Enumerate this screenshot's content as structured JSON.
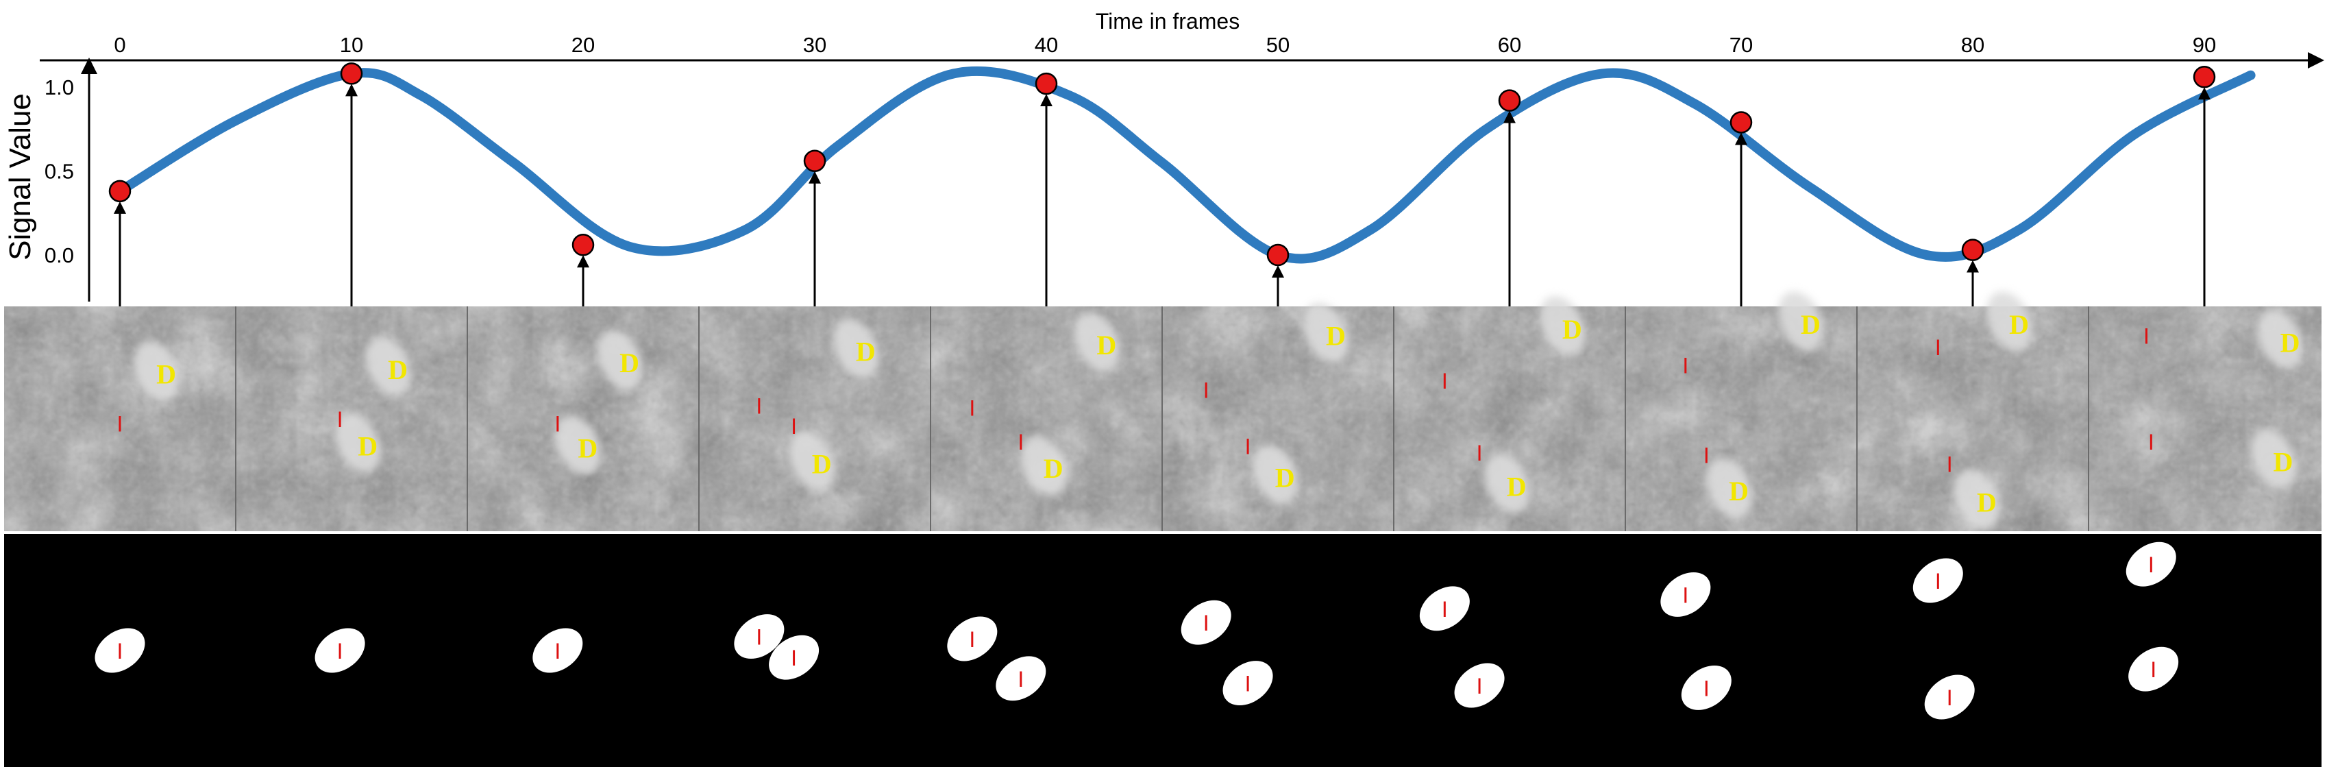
{
  "chart_data": {
    "type": "line",
    "title": "",
    "xlabel": "Time in frames",
    "ylabel": "Signal Value",
    "xlim": [
      -3,
      97
    ],
    "ylim": [
      -0.25,
      1.25
    ],
    "x_ticks": [
      "0",
      "10",
      "20",
      "30",
      "40",
      "50",
      "60",
      "70",
      "80",
      "90"
    ],
    "y_ticks": [
      "1.0",
      "0.5",
      "0.0"
    ],
    "curve": {
      "x": [
        0,
        5,
        10,
        13,
        17,
        22,
        27,
        31,
        36,
        41,
        45,
        50,
        54,
        59,
        64,
        68,
        73,
        78,
        82,
        87,
        92
      ],
      "y": [
        0.38,
        0.8,
        1.08,
        0.95,
        0.55,
        0.05,
        0.15,
        0.65,
        1.08,
        0.95,
        0.55,
        0.0,
        0.15,
        0.75,
        1.08,
        0.9,
        0.4,
        0.0,
        0.15,
        0.72,
        1.07
      ]
    },
    "samples": {
      "x": [
        0,
        10,
        20,
        30,
        40,
        50,
        60,
        70,
        80,
        90
      ],
      "y": [
        0.38,
        1.08,
        0.06,
        0.56,
        1.02,
        0.0,
        0.92,
        0.79,
        0.03,
        1.06
      ]
    },
    "colors": {
      "curve": "#2f7bbf",
      "sample": "#e61919",
      "d_label": "#f2e600",
      "i_label": "#dd1111"
    },
    "frames": [
      {
        "frame": 0,
        "d": [
          {
            "x": 0.7,
            "y": 0.3
          }
        ],
        "i": [
          {
            "x": 0.5,
            "y": 0.52
          }
        ],
        "masks_i": [
          {
            "x": 0.5,
            "y": 0.5
          }
        ]
      },
      {
        "frame": 10,
        "d": [
          {
            "x": 0.7,
            "y": 0.28
          },
          {
            "x": 0.57,
            "y": 0.62
          }
        ],
        "i": [
          {
            "x": 0.45,
            "y": 0.5
          }
        ],
        "masks_i": [
          {
            "x": 0.45,
            "y": 0.5
          }
        ]
      },
      {
        "frame": 20,
        "d": [
          {
            "x": 0.7,
            "y": 0.25
          },
          {
            "x": 0.52,
            "y": 0.63
          }
        ],
        "i": [
          {
            "x": 0.39,
            "y": 0.52
          }
        ],
        "masks_i": [
          {
            "x": 0.39,
            "y": 0.5
          }
        ]
      },
      {
        "frame": 30,
        "d": [
          {
            "x": 0.72,
            "y": 0.2
          },
          {
            "x": 0.53,
            "y": 0.7
          }
        ],
        "i": [
          {
            "x": 0.26,
            "y": 0.44
          },
          {
            "x": 0.41,
            "y": 0.53
          }
        ],
        "masks_i": [
          {
            "x": 0.26,
            "y": 0.44
          },
          {
            "x": 0.41,
            "y": 0.53
          }
        ]
      },
      {
        "frame": 40,
        "d": [
          {
            "x": 0.76,
            "y": 0.17
          },
          {
            "x": 0.53,
            "y": 0.72
          }
        ],
        "i": [
          {
            "x": 0.18,
            "y": 0.45
          },
          {
            "x": 0.39,
            "y": 0.6
          }
        ],
        "masks_i": [
          {
            "x": 0.18,
            "y": 0.45
          },
          {
            "x": 0.39,
            "y": 0.62
          }
        ]
      },
      {
        "frame": 50,
        "d": [
          {
            "x": 0.75,
            "y": 0.13
          },
          {
            "x": 0.53,
            "y": 0.76
          }
        ],
        "i": [
          {
            "x": 0.19,
            "y": 0.37
          },
          {
            "x": 0.37,
            "y": 0.62
          }
        ],
        "masks_i": [
          {
            "x": 0.19,
            "y": 0.38
          },
          {
            "x": 0.37,
            "y": 0.64
          }
        ]
      },
      {
        "frame": 60,
        "d": [
          {
            "x": 0.77,
            "y": 0.1
          },
          {
            "x": 0.53,
            "y": 0.8
          }
        ],
        "i": [
          {
            "x": 0.22,
            "y": 0.33
          },
          {
            "x": 0.37,
            "y": 0.65
          }
        ],
        "masks_i": [
          {
            "x": 0.22,
            "y": 0.32
          },
          {
            "x": 0.37,
            "y": 0.65
          }
        ]
      },
      {
        "frame": 70,
        "d": [
          {
            "x": 0.8,
            "y": 0.08
          },
          {
            "x": 0.49,
            "y": 0.82
          }
        ],
        "i": [
          {
            "x": 0.26,
            "y": 0.26
          },
          {
            "x": 0.35,
            "y": 0.66
          }
        ],
        "masks_i": [
          {
            "x": 0.26,
            "y": 0.26
          },
          {
            "x": 0.35,
            "y": 0.66
          }
        ]
      },
      {
        "frame": 80,
        "d": [
          {
            "x": 0.7,
            "y": 0.08
          },
          {
            "x": 0.56,
            "y": 0.87
          }
        ],
        "i": [
          {
            "x": 0.35,
            "y": 0.18
          },
          {
            "x": 0.4,
            "y": 0.7
          }
        ],
        "masks_i": [
          {
            "x": 0.35,
            "y": 0.2
          },
          {
            "x": 0.4,
            "y": 0.7
          }
        ]
      },
      {
        "frame": 90,
        "d": [
          {
            "x": 0.87,
            "y": 0.16
          },
          {
            "x": 0.84,
            "y": 0.69
          }
        ],
        "i": [
          {
            "x": 0.25,
            "y": 0.13
          },
          {
            "x": 0.27,
            "y": 0.6
          }
        ],
        "masks_i": [
          {
            "x": 0.27,
            "y": 0.13
          },
          {
            "x": 0.28,
            "y": 0.58
          }
        ]
      }
    ],
    "cell_labels": {
      "d": "D",
      "i": "I"
    }
  }
}
